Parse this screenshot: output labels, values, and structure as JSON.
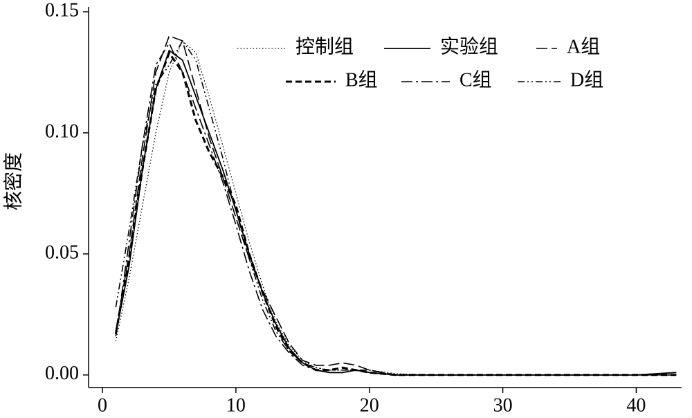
{
  "chart_data": {
    "type": "line",
    "ylabel": "核密度",
    "x": [
      1,
      2,
      3,
      4,
      5,
      6,
      7,
      8,
      9,
      10,
      11,
      12,
      13,
      14,
      15,
      16,
      17,
      18,
      19,
      20,
      22,
      25,
      30,
      35,
      40,
      43
    ],
    "series": [
      {
        "name": "控制组",
        "color": "#000000",
        "dash": "dotted",
        "values": [
          0.014,
          0.04,
          0.07,
          0.1,
          0.125,
          0.138,
          0.133,
          0.115,
          0.095,
          0.075,
          0.055,
          0.037,
          0.022,
          0.012,
          0.006,
          0.003,
          0.002,
          0.002,
          0.002,
          0.002,
          0.0005,
          0,
          0,
          0,
          0,
          0.001
        ]
      },
      {
        "name": "实验组",
        "color": "#000000",
        "dash": "solid",
        "values": [
          0.017,
          0.045,
          0.085,
          0.118,
          0.134,
          0.13,
          0.115,
          0.1,
          0.085,
          0.068,
          0.05,
          0.034,
          0.021,
          0.011,
          0.005,
          0.002,
          0.001,
          0.001,
          0.002,
          0.001,
          0,
          0,
          0,
          0,
          0,
          0.001
        ]
      },
      {
        "name": "A组",
        "color": "#000000",
        "dash": "longdash",
        "values": [
          0.018,
          0.05,
          0.09,
          0.125,
          0.14,
          0.138,
          0.118,
          0.098,
          0.082,
          0.065,
          0.048,
          0.035,
          0.024,
          0.013,
          0.006,
          0.004,
          0.004,
          0.005,
          0.004,
          0.002,
          0,
          0,
          0,
          0,
          0,
          0
        ]
      },
      {
        "name": "B组",
        "color": "#000000",
        "dash": "dashed",
        "values": [
          0.017,
          0.048,
          0.085,
          0.118,
          0.133,
          0.125,
          0.105,
          0.092,
          0.082,
          0.07,
          0.05,
          0.034,
          0.02,
          0.01,
          0.005,
          0.002,
          0.002,
          0.003,
          0.002,
          0.001,
          0,
          0,
          0,
          0,
          0,
          0
        ]
      },
      {
        "name": "C组",
        "color": "#000000",
        "dash": "dashdot",
        "values": [
          0.016,
          0.055,
          0.095,
          0.128,
          0.137,
          0.125,
          0.11,
          0.095,
          0.08,
          0.062,
          0.043,
          0.027,
          0.016,
          0.009,
          0.004,
          0.002,
          0.001,
          0.001,
          0.002,
          0.001,
          0,
          0,
          0,
          0,
          0,
          0
        ]
      },
      {
        "name": "D组",
        "color": "#000000",
        "dash": "dashdotdot",
        "values": [
          0.028,
          0.06,
          0.095,
          0.12,
          0.128,
          0.138,
          0.13,
          0.11,
          0.09,
          0.068,
          0.048,
          0.031,
          0.018,
          0.01,
          0.005,
          0.003,
          0.002,
          0.002,
          0.002,
          0.002,
          0,
          0,
          0,
          0,
          0,
          0.001
        ]
      }
    ],
    "xlim": [
      -1.04,
      43.4
    ],
    "ylim": [
      -0.0052,
      0.152
    ],
    "xticks": [
      0,
      10,
      20,
      30,
      40
    ],
    "yticks": [
      {
        "value": 0,
        "label": "0.00"
      },
      {
        "value": 0.05,
        "label": "0.05"
      },
      {
        "value": 0.1,
        "label": "0.10"
      },
      {
        "value": 0.15,
        "label": "0.15"
      }
    ],
    "grid": false
  }
}
